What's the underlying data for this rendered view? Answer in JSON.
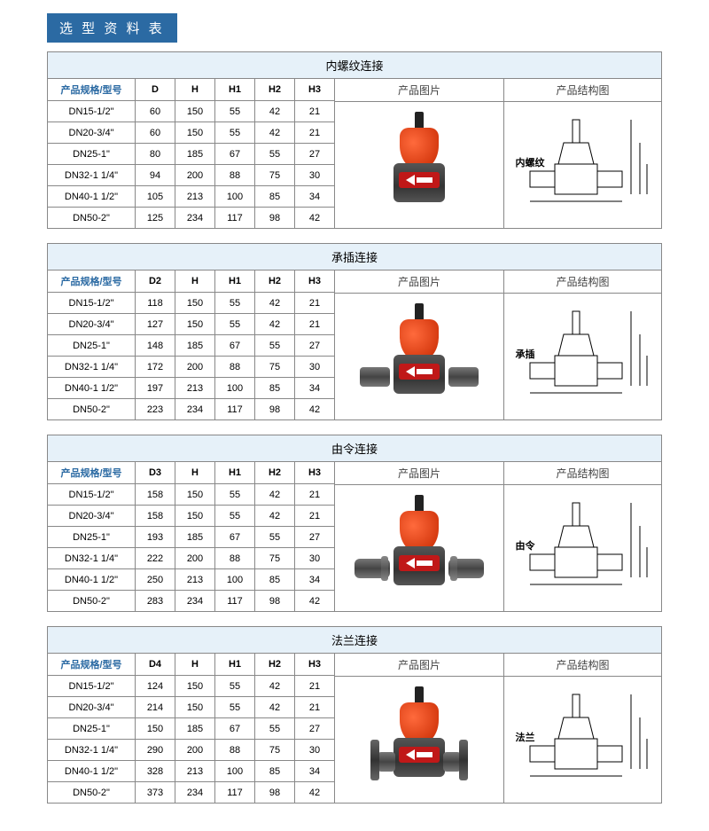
{
  "page_title": "选 型 资 料 表",
  "img_header": "产品图片",
  "struct_header": "产品结构图",
  "model_header": "产品规格/型号",
  "sections": [
    {
      "title": "内螺纹连接",
      "dim_label": "D",
      "diagram_label": "内螺纹",
      "valve_variant": "thread",
      "rows": [
        {
          "model": "DN15-1/2\"",
          "d": "60",
          "h": "150",
          "h1": "55",
          "h2": "42",
          "h3": "21"
        },
        {
          "model": "DN20-3/4\"",
          "d": "60",
          "h": "150",
          "h1": "55",
          "h2": "42",
          "h3": "21"
        },
        {
          "model": "DN25-1\"",
          "d": "80",
          "h": "185",
          "h1": "67",
          "h2": "55",
          "h3": "27"
        },
        {
          "model": "DN32-1 1/4\"",
          "d": "94",
          "h": "200",
          "h1": "88",
          "h2": "75",
          "h3": "30"
        },
        {
          "model": "DN40-1 1/2\"",
          "d": "105",
          "h": "213",
          "h1": "100",
          "h2": "85",
          "h3": "34"
        },
        {
          "model": "DN50-2\"",
          "d": "125",
          "h": "234",
          "h1": "117",
          "h2": "98",
          "h3": "42"
        }
      ]
    },
    {
      "title": "承插连接",
      "dim_label": "D2",
      "diagram_label": "承插",
      "valve_variant": "socket",
      "rows": [
        {
          "model": "DN15-1/2\"",
          "d": "118",
          "h": "150",
          "h1": "55",
          "h2": "42",
          "h3": "21"
        },
        {
          "model": "DN20-3/4\"",
          "d": "127",
          "h": "150",
          "h1": "55",
          "h2": "42",
          "h3": "21"
        },
        {
          "model": "DN25-1\"",
          "d": "148",
          "h": "185",
          "h1": "67",
          "h2": "55",
          "h3": "27"
        },
        {
          "model": "DN32-1 1/4\"",
          "d": "172",
          "h": "200",
          "h1": "88",
          "h2": "75",
          "h3": "30"
        },
        {
          "model": "DN40-1 1/2\"",
          "d": "197",
          "h": "213",
          "h1": "100",
          "h2": "85",
          "h3": "34"
        },
        {
          "model": "DN50-2\"",
          "d": "223",
          "h": "234",
          "h1": "117",
          "h2": "98",
          "h3": "42"
        }
      ]
    },
    {
      "title": "由令连接",
      "dim_label": "D3",
      "diagram_label": "由令",
      "valve_variant": "union",
      "rows": [
        {
          "model": "DN15-1/2\"",
          "d": "158",
          "h": "150",
          "h1": "55",
          "h2": "42",
          "h3": "21"
        },
        {
          "model": "DN20-3/4\"",
          "d": "158",
          "h": "150",
          "h1": "55",
          "h2": "42",
          "h3": "21"
        },
        {
          "model": "DN25-1\"",
          "d": "193",
          "h": "185",
          "h1": "67",
          "h2": "55",
          "h3": "27"
        },
        {
          "model": "DN32-1 1/4\"",
          "d": "222",
          "h": "200",
          "h1": "88",
          "h2": "75",
          "h3": "30"
        },
        {
          "model": "DN40-1 1/2\"",
          "d": "250",
          "h": "213",
          "h1": "100",
          "h2": "85",
          "h3": "34"
        },
        {
          "model": "DN50-2\"",
          "d": "283",
          "h": "234",
          "h1": "117",
          "h2": "98",
          "h3": "42"
        }
      ]
    },
    {
      "title": "法兰连接",
      "dim_label": "D4",
      "diagram_label": "法兰",
      "valve_variant": "flange",
      "rows": [
        {
          "model": "DN15-1/2\"",
          "d": "124",
          "h": "150",
          "h1": "55",
          "h2": "42",
          "h3": "21"
        },
        {
          "model": "DN20-3/4\"",
          "d": "214",
          "h": "150",
          "h1": "55",
          "h2": "42",
          "h3": "21"
        },
        {
          "model": "DN25-1\"",
          "d": "150",
          "h": "185",
          "h1": "67",
          "h2": "55",
          "h3": "27"
        },
        {
          "model": "DN32-1 1/4\"",
          "d": "290",
          "h": "200",
          "h1": "88",
          "h2": "75",
          "h3": "30"
        },
        {
          "model": "DN40-1 1/2\"",
          "d": "328",
          "h": "213",
          "h1": "100",
          "h2": "85",
          "h3": "34"
        },
        {
          "model": "DN50-2\"",
          "d": "373",
          "h": "234",
          "h1": "117",
          "h2": "98",
          "h3": "42"
        }
      ]
    }
  ],
  "dim_headers": [
    "H",
    "H1",
    "H2",
    "H3"
  ],
  "colors": {
    "badge_bg": "#2b6aa3",
    "header_bg": "#e6f1f9",
    "border": "#888888"
  }
}
